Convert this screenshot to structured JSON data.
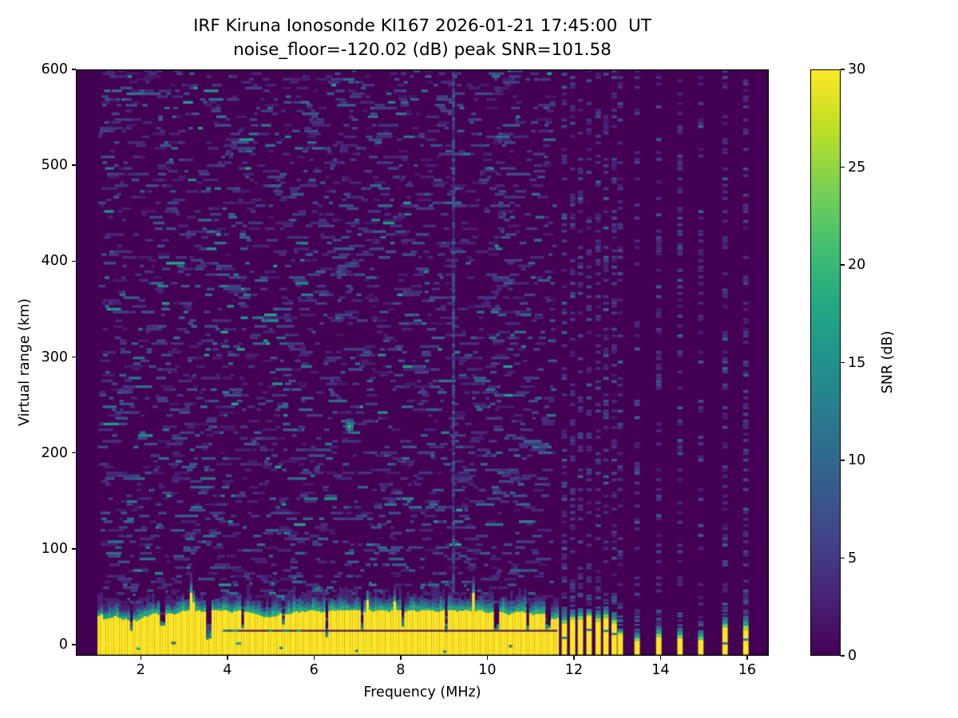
{
  "chart_data": {
    "type": "heatmap",
    "title_line1": "IRF Kiruna Ionosonde KI167 2026-01-21 17:45:00  UT",
    "title_line2": "noise_floor=-120.02 (dB) peak SNR=101.58",
    "xlabel": "Frequency (MHz)",
    "ylabel": "Virtual range (km)",
    "xlim": [
      0.5,
      16.5
    ],
    "ylim": [
      -11.6,
      600
    ],
    "x_ticks": [
      2,
      4,
      6,
      8,
      10,
      12,
      14,
      16
    ],
    "y_ticks": [
      0,
      100,
      200,
      300,
      400,
      500,
      600
    ],
    "noise_floor_db": -120.02,
    "peak_snr_db": 101.58,
    "grid": false,
    "colorbar": {
      "label": "SNR (dB)",
      "ticks": [
        0,
        5,
        10,
        15,
        20,
        25,
        30
      ],
      "vmin": 0,
      "vmax": 30,
      "colormap": "viridis",
      "stops": [
        [
          0.0,
          "#440154"
        ],
        [
          0.1,
          "#482475"
        ],
        [
          0.2,
          "#414487"
        ],
        [
          0.3,
          "#355f8d"
        ],
        [
          0.4,
          "#2a788e"
        ],
        [
          0.5,
          "#21918c"
        ],
        [
          0.6,
          "#22a884"
        ],
        [
          0.7,
          "#44bf70"
        ],
        [
          0.8,
          "#7ad151"
        ],
        [
          0.9,
          "#bddf26"
        ],
        [
          1.0,
          "#fde725"
        ]
      ]
    },
    "heatmap": {
      "seed": 13,
      "background_snr_db": 0,
      "sweep_start_mhz": 1.0,
      "continuous_sweep_end_mhz": 11.62,
      "stepped_freqs_mhz": [
        11.78,
        11.97,
        12.15,
        12.35,
        12.56,
        12.74,
        12.93,
        13.07,
        13.46,
        13.96,
        14.45,
        14.93,
        15.49,
        15.97
      ],
      "noise_speckle": {
        "coverage": 0.32,
        "snr_low_db": 2,
        "snr_high_db": 14
      },
      "rfi_stripe_mhz": 9.22,
      "ground_clutter": {
        "snr_db": 30,
        "mean_saturated_top_km": 27,
        "max_transition_top_km": 58,
        "notches_mhz_top_km": [
          [
            1.8,
            14
          ],
          [
            2.5,
            18
          ],
          [
            3.56,
            4
          ],
          [
            4.35,
            15
          ],
          [
            5.3,
            19
          ],
          [
            6.28,
            8
          ],
          [
            7.1,
            15
          ],
          [
            8.05,
            18
          ],
          [
            9.05,
            13
          ],
          [
            10.2,
            15
          ],
          [
            10.95,
            12
          ],
          [
            11.4,
            15
          ]
        ],
        "dark_line": {
          "from_mhz": 3.9,
          "to_mhz": 11.62,
          "km": 15.5
        },
        "bottom_specks_mhz": [
          1.9,
          2.7,
          4.2,
          5.2,
          6.95,
          8.98,
          10.5
        ]
      },
      "stepped_clutter_bars": [
        {
          "f_mhz": 11.78,
          "sat_top_km": 22,
          "fade_top_km": 34
        },
        {
          "f_mhz": 11.97,
          "sat_top_km": 26,
          "fade_top_km": 36
        },
        {
          "f_mhz": 12.15,
          "sat_top_km": 26,
          "fade_top_km": 38
        },
        {
          "f_mhz": 12.35,
          "sat_top_km": 30,
          "fade_top_km": 37
        },
        {
          "f_mhz": 12.56,
          "sat_top_km": 24,
          "fade_top_km": 36
        },
        {
          "f_mhz": 12.74,
          "sat_top_km": 28,
          "fade_top_km": 40
        },
        {
          "f_mhz": 12.93,
          "sat_top_km": 22,
          "fade_top_km": 34
        },
        {
          "f_mhz": 13.07,
          "sat_top_km": 11,
          "fade_top_km": 17
        },
        {
          "f_mhz": 13.46,
          "sat_top_km": 4,
          "fade_top_km": 13
        },
        {
          "f_mhz": 13.96,
          "sat_top_km": 8,
          "fade_top_km": 19
        },
        {
          "f_mhz": 14.45,
          "sat_top_km": 7,
          "fade_top_km": 18
        },
        {
          "f_mhz": 14.93,
          "sat_top_km": 5,
          "fade_top_km": 15
        },
        {
          "f_mhz": 15.49,
          "sat_top_km": 18,
          "fade_top_km": 29
        },
        {
          "f_mhz": 15.97,
          "sat_top_km": 15,
          "fade_top_km": 30
        }
      ],
      "echo": {
        "freq_mhz": 6.82,
        "range_km": 228,
        "peak_snr_db": 22,
        "width_mhz": 0.25,
        "height_km": 18
      }
    }
  }
}
